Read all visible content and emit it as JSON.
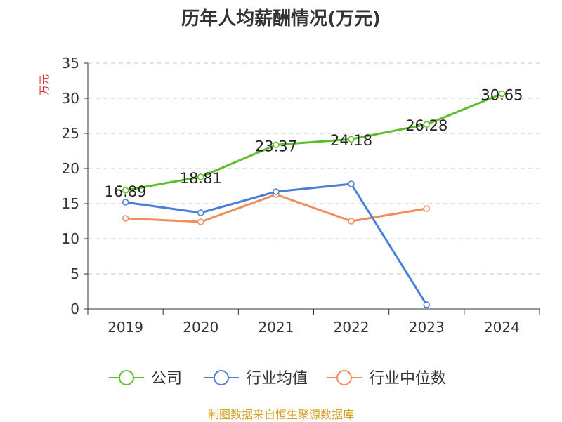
{
  "title": "历年人均薪酬情况(万元)",
  "source": "制图数据来自恒生聚源数据库",
  "colors": {
    "company": "#5cbf2a",
    "industry_avg": "#4a7fd9",
    "industry_median": "#f28c5a",
    "source": "#d4a020",
    "ylabel": "#e03030"
  },
  "chart_data": {
    "type": "line",
    "title": "历年人均薪酬情况(万元)",
    "xlabel": "",
    "ylabel": "万元",
    "categories": [
      "2019",
      "2020",
      "2021",
      "2022",
      "2023",
      "2024"
    ],
    "ylim": [
      0,
      35
    ],
    "yticks": [
      0,
      5,
      10,
      15,
      20,
      25,
      30,
      35
    ],
    "grid": true,
    "legend_position": "bottom",
    "series": [
      {
        "name": "公司",
        "values": [
          16.89,
          18.81,
          23.37,
          24.18,
          26.28,
          30.65
        ],
        "labels": [
          "16.89",
          "18.81",
          "23.37",
          "24.18",
          "26.28",
          "30.65"
        ]
      },
      {
        "name": "行业均值",
        "values": [
          15.2,
          13.7,
          16.7,
          17.8,
          0.6,
          null
        ]
      },
      {
        "name": "行业中位数",
        "values": [
          12.9,
          12.4,
          16.3,
          12.5,
          14.3,
          null
        ]
      }
    ]
  }
}
